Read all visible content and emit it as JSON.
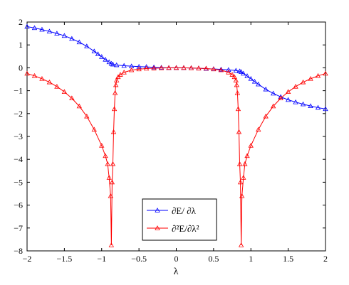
{
  "chart_data": {
    "type": "line",
    "title": "",
    "xlabel": "λ",
    "ylabel": "",
    "xlim": [
      -2,
      2
    ],
    "ylim": [
      -8,
      2
    ],
    "xticks": [
      -2,
      -1.5,
      -1,
      -0.5,
      0,
      0.5,
      1,
      1.5,
      2
    ],
    "xtick_labels": [
      "−2",
      "−1.5",
      "−1",
      "−0.5",
      "0",
      "0.5",
      "1",
      "1.5",
      "2"
    ],
    "yticks": [
      -8,
      -7,
      -6,
      -5,
      -4,
      -3,
      -2,
      -1,
      0,
      1,
      2
    ],
    "ytick_labels": [
      "−8",
      "−7",
      "−6",
      "−5",
      "−4",
      "−3",
      "−2",
      "−1",
      "0",
      "1",
      "2"
    ],
    "grid": false,
    "legend_position": "bottom-center",
    "marker": "triangle",
    "series": [
      {
        "name": "∂E/ ∂λ",
        "color": "#0000ff",
        "x": [
          -2.0,
          -1.9,
          -1.8,
          -1.7,
          -1.6,
          -1.5,
          -1.4,
          -1.3,
          -1.2,
          -1.1,
          -1.05,
          -1.0,
          -0.95,
          -0.9,
          -0.87,
          -0.85,
          -0.8,
          -0.7,
          -0.6,
          -0.5,
          -0.4,
          -0.3,
          -0.2,
          -0.1,
          0.0,
          0.1,
          0.2,
          0.3,
          0.4,
          0.5,
          0.6,
          0.7,
          0.8,
          0.85,
          0.87,
          0.9,
          0.95,
          1.0,
          1.05,
          1.1,
          1.2,
          1.3,
          1.4,
          1.5,
          1.6,
          1.7,
          1.8,
          1.9,
          2.0
        ],
        "y": [
          1.8,
          1.74,
          1.67,
          1.59,
          1.5,
          1.4,
          1.27,
          1.12,
          0.94,
          0.72,
          0.6,
          0.48,
          0.36,
          0.25,
          0.18,
          0.15,
          0.12,
          0.09,
          0.07,
          0.05,
          0.04,
          0.02,
          0.01,
          0.0,
          0.0,
          0.0,
          -0.01,
          -0.02,
          -0.04,
          -0.05,
          -0.07,
          -0.09,
          -0.12,
          -0.15,
          -0.18,
          -0.25,
          -0.36,
          -0.48,
          -0.6,
          -0.72,
          -0.94,
          -1.12,
          -1.27,
          -1.4,
          -1.5,
          -1.59,
          -1.67,
          -1.74,
          -1.8
        ]
      },
      {
        "name": "∂²E/∂λ²",
        "color": "#ff0000",
        "x": [
          -2.0,
          -1.9,
          -1.8,
          -1.7,
          -1.6,
          -1.5,
          -1.4,
          -1.3,
          -1.2,
          -1.1,
          -1.0,
          -0.95,
          -0.92,
          -0.9,
          -0.88,
          -0.87,
          -0.86,
          -0.85,
          -0.84,
          -0.83,
          -0.82,
          -0.81,
          -0.8,
          -0.78,
          -0.75,
          -0.7,
          -0.6,
          -0.5,
          -0.4,
          -0.3,
          -0.2,
          -0.1,
          0.0,
          0.1,
          0.2,
          0.3,
          0.4,
          0.5,
          0.6,
          0.7,
          0.75,
          0.78,
          0.8,
          0.81,
          0.82,
          0.83,
          0.84,
          0.85,
          0.86,
          0.87,
          0.88,
          0.9,
          0.92,
          0.95,
          1.0,
          1.1,
          1.2,
          1.3,
          1.4,
          1.5,
          1.6,
          1.7,
          1.8,
          1.9,
          2.0
        ],
        "y": [
          -0.25,
          -0.35,
          -0.48,
          -0.63,
          -0.82,
          -1.05,
          -1.33,
          -1.68,
          -2.12,
          -2.7,
          -3.4,
          -3.85,
          -4.2,
          -4.8,
          -5.6,
          -7.75,
          -5.0,
          -4.2,
          -2.8,
          -1.8,
          -1.1,
          -0.75,
          -0.55,
          -0.4,
          -0.3,
          -0.2,
          -0.1,
          -0.06,
          -0.03,
          -0.02,
          -0.01,
          0.0,
          0.0,
          0.0,
          -0.01,
          -0.02,
          -0.03,
          -0.06,
          -0.1,
          -0.2,
          -0.3,
          -0.4,
          -0.55,
          -0.75,
          -1.1,
          -1.8,
          -2.8,
          -4.2,
          -5.0,
          -7.75,
          -5.6,
          -4.8,
          -4.2,
          -3.85,
          -3.4,
          -2.7,
          -2.12,
          -1.68,
          -1.33,
          -1.05,
          -0.82,
          -0.63,
          -0.48,
          -0.35,
          -0.25
        ]
      }
    ]
  }
}
